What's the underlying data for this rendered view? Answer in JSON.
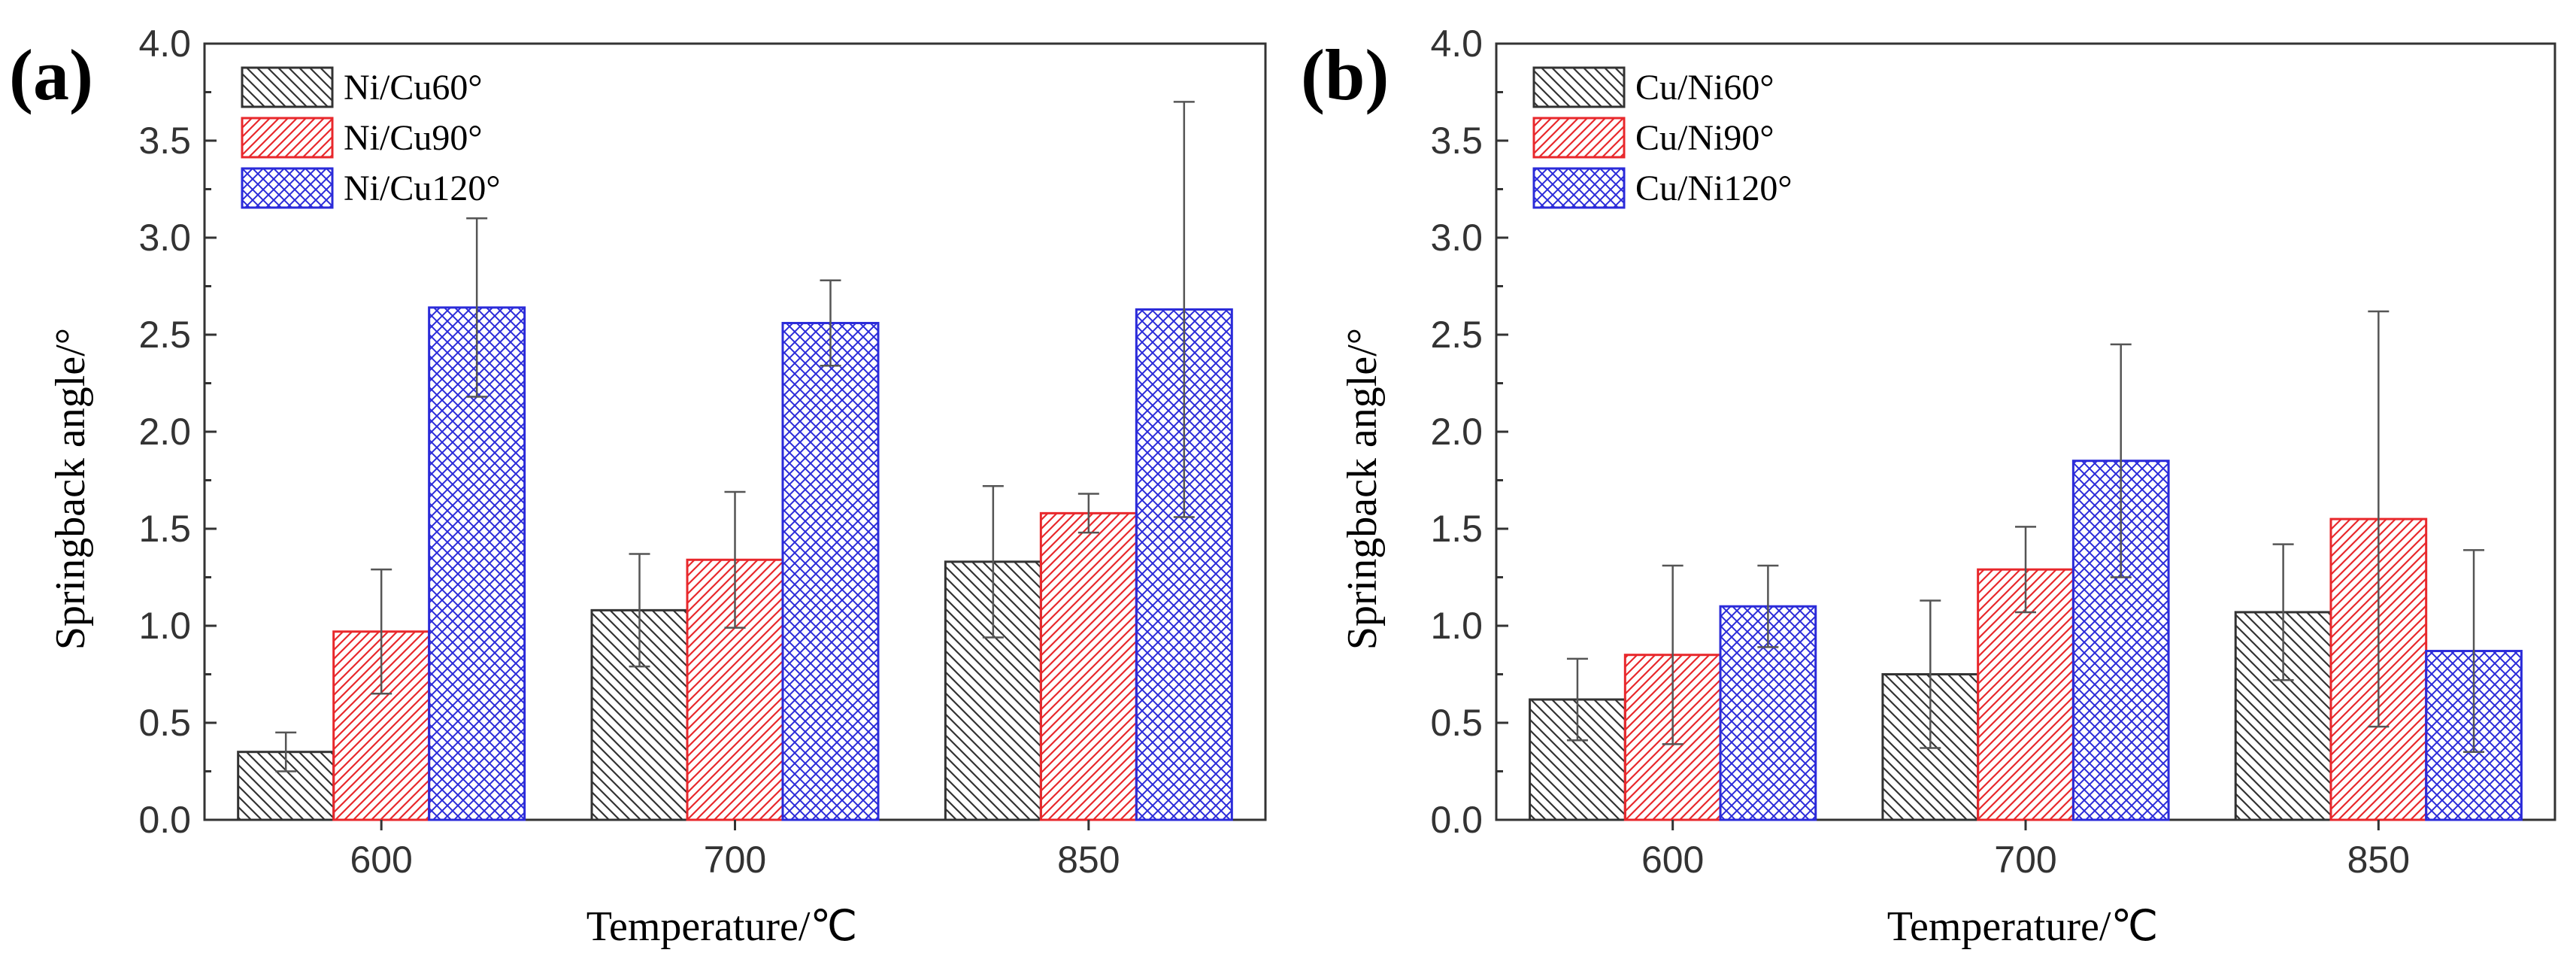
{
  "chart_data": [
    {
      "panel_label": "(a)",
      "type": "bar",
      "categories": [
        "600",
        "700",
        "850"
      ],
      "series": [
        {
          "name": "Ni/Cu60°",
          "values": [
            0.35,
            1.08,
            1.33
          ],
          "errors": [
            0.1,
            0.29,
            0.39
          ],
          "color": "#333333",
          "pattern": "diag-back"
        },
        {
          "name": "Ni/Cu90°",
          "values": [
            0.97,
            1.34,
            1.58
          ],
          "errors": [
            0.32,
            0.35,
            0.1
          ],
          "color": "#e8282c",
          "pattern": "diag-fwd"
        },
        {
          "name": "Ni/Cu120°",
          "values": [
            2.64,
            2.56,
            2.63
          ],
          "errors": [
            0.46,
            0.22,
            1.07
          ],
          "color": "#2b2bd9",
          "pattern": "cross"
        }
      ],
      "xlabel": "Temperature/℃",
      "ylabel": "Springback angle/°",
      "ylim": [
        0,
        4.0
      ],
      "yticks": [
        "0.0",
        "0.5",
        "1.0",
        "1.5",
        "2.0",
        "2.5",
        "3.0",
        "3.5",
        "4.0"
      ],
      "legend": "top-left",
      "grid": false
    },
    {
      "panel_label": "(b)",
      "type": "bar",
      "categories": [
        "600",
        "700",
        "850"
      ],
      "series": [
        {
          "name": "Cu/Ni60°",
          "values": [
            0.62,
            0.75,
            1.07
          ],
          "errors": [
            0.21,
            0.38,
            0.35
          ],
          "color": "#333333",
          "pattern": "diag-back"
        },
        {
          "name": "Cu/Ni90°",
          "values": [
            0.85,
            1.29,
            1.55
          ],
          "errors": [
            0.46,
            0.22,
            1.07
          ],
          "color": "#e8282c",
          "pattern": "diag-fwd"
        },
        {
          "name": "Cu/Ni120°",
          "values": [
            1.1,
            1.85,
            0.87
          ],
          "errors": [
            0.21,
            0.6,
            0.52
          ],
          "color": "#2b2bd9",
          "pattern": "cross"
        }
      ],
      "xlabel": "Temperature/℃",
      "ylabel": "Springback angle/°",
      "ylim": [
        0,
        4.0
      ],
      "yticks": [
        "0.0",
        "0.5",
        "1.0",
        "1.5",
        "2.0",
        "2.5",
        "3.0",
        "3.5",
        "4.0"
      ],
      "legend": "top-left",
      "grid": false
    }
  ]
}
